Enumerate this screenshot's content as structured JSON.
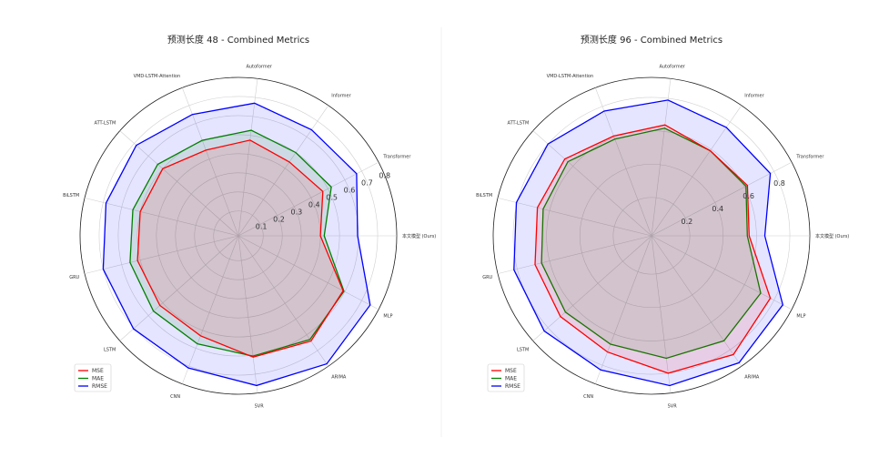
{
  "chart_data": [
    {
      "type": "radar",
      "title": "预测长度 48 - Combined Metrics",
      "categories": [
        "本文模型 (Ours)",
        "Transformer",
        "Informer",
        "Autoformer",
        "VMD-LSTM-Attention",
        "ATT-LSTM",
        "BiLSTM",
        "GRU",
        "LSTM",
        "CNN",
        "SVR",
        "ARIMA",
        "MLP"
      ],
      "rlim": [
        -0.03,
        0.8
      ],
      "rticks": [
        0.1,
        0.2,
        0.3,
        0.4,
        0.5,
        0.6,
        0.7,
        0.8
      ],
      "rtick_labels": [
        "0.1",
        "0.2",
        "0.3",
        "0.4",
        "0.5",
        "0.6",
        "0.7",
        "0.8"
      ],
      "grid": true,
      "legend_position": "lower-left",
      "series": [
        {
          "name": "MSE",
          "color": "#ff0000",
          "values": [
            0.4,
            0.47,
            0.44,
            0.475,
            0.45,
            0.5,
            0.5,
            0.515,
            0.52,
            0.53,
            0.61,
            0.64,
            0.59
          ]
        },
        {
          "name": "MAE",
          "color": "#008000",
          "values": [
            0.42,
            0.52,
            0.5,
            0.527,
            0.505,
            0.535,
            0.54,
            0.555,
            0.565,
            0.575,
            0.605,
            0.63,
            0.595
          ]
        },
        {
          "name": "RMSE",
          "color": "#0000ff",
          "values": [
            0.595,
            0.67,
            0.645,
            0.67,
            0.65,
            0.685,
            0.685,
            0.7,
            0.705,
            0.71,
            0.76,
            0.785,
            0.75
          ]
        }
      ]
    },
    {
      "type": "radar",
      "title": "预测长度 96 - Combined Metrics",
      "categories": [
        "本文模型 (Ours)",
        "Transformer",
        "Informer",
        "Autoformer",
        "VMD-LSTM-Attention",
        "ATT-LSTM",
        "BiLSTM",
        "GRU",
        "LSTM",
        "CNN",
        "SVR",
        "ARIMA",
        "MLP"
      ],
      "rlim": [
        -0.03,
        0.92
      ],
      "rticks": [
        0.2,
        0.4,
        0.6,
        0.8
      ],
      "rtick_labels": [
        "0.2",
        "0.4",
        "0.6",
        "0.8"
      ],
      "grid": true,
      "legend_position": "lower-left",
      "series": [
        {
          "name": "MSE",
          "color": "#ff0000",
          "values": [
            0.556,
            0.62,
            0.59,
            0.64,
            0.61,
            0.665,
            0.675,
            0.69,
            0.7,
            0.715,
            0.8,
            0.835,
            0.775
          ]
        },
        {
          "name": "MAE",
          "color": "#008000",
          "values": [
            0.545,
            0.61,
            0.59,
            0.62,
            0.59,
            0.64,
            0.64,
            0.65,
            0.66,
            0.665,
            0.71,
            0.735,
            0.71
          ]
        },
        {
          "name": "RMSE",
          "color": "#0000ff",
          "values": [
            0.65,
            0.775,
            0.76,
            0.79,
            0.77,
            0.8,
            0.805,
            0.82,
            0.83,
            0.83,
            0.875,
            0.895,
            0.86
          ]
        }
      ]
    }
  ]
}
